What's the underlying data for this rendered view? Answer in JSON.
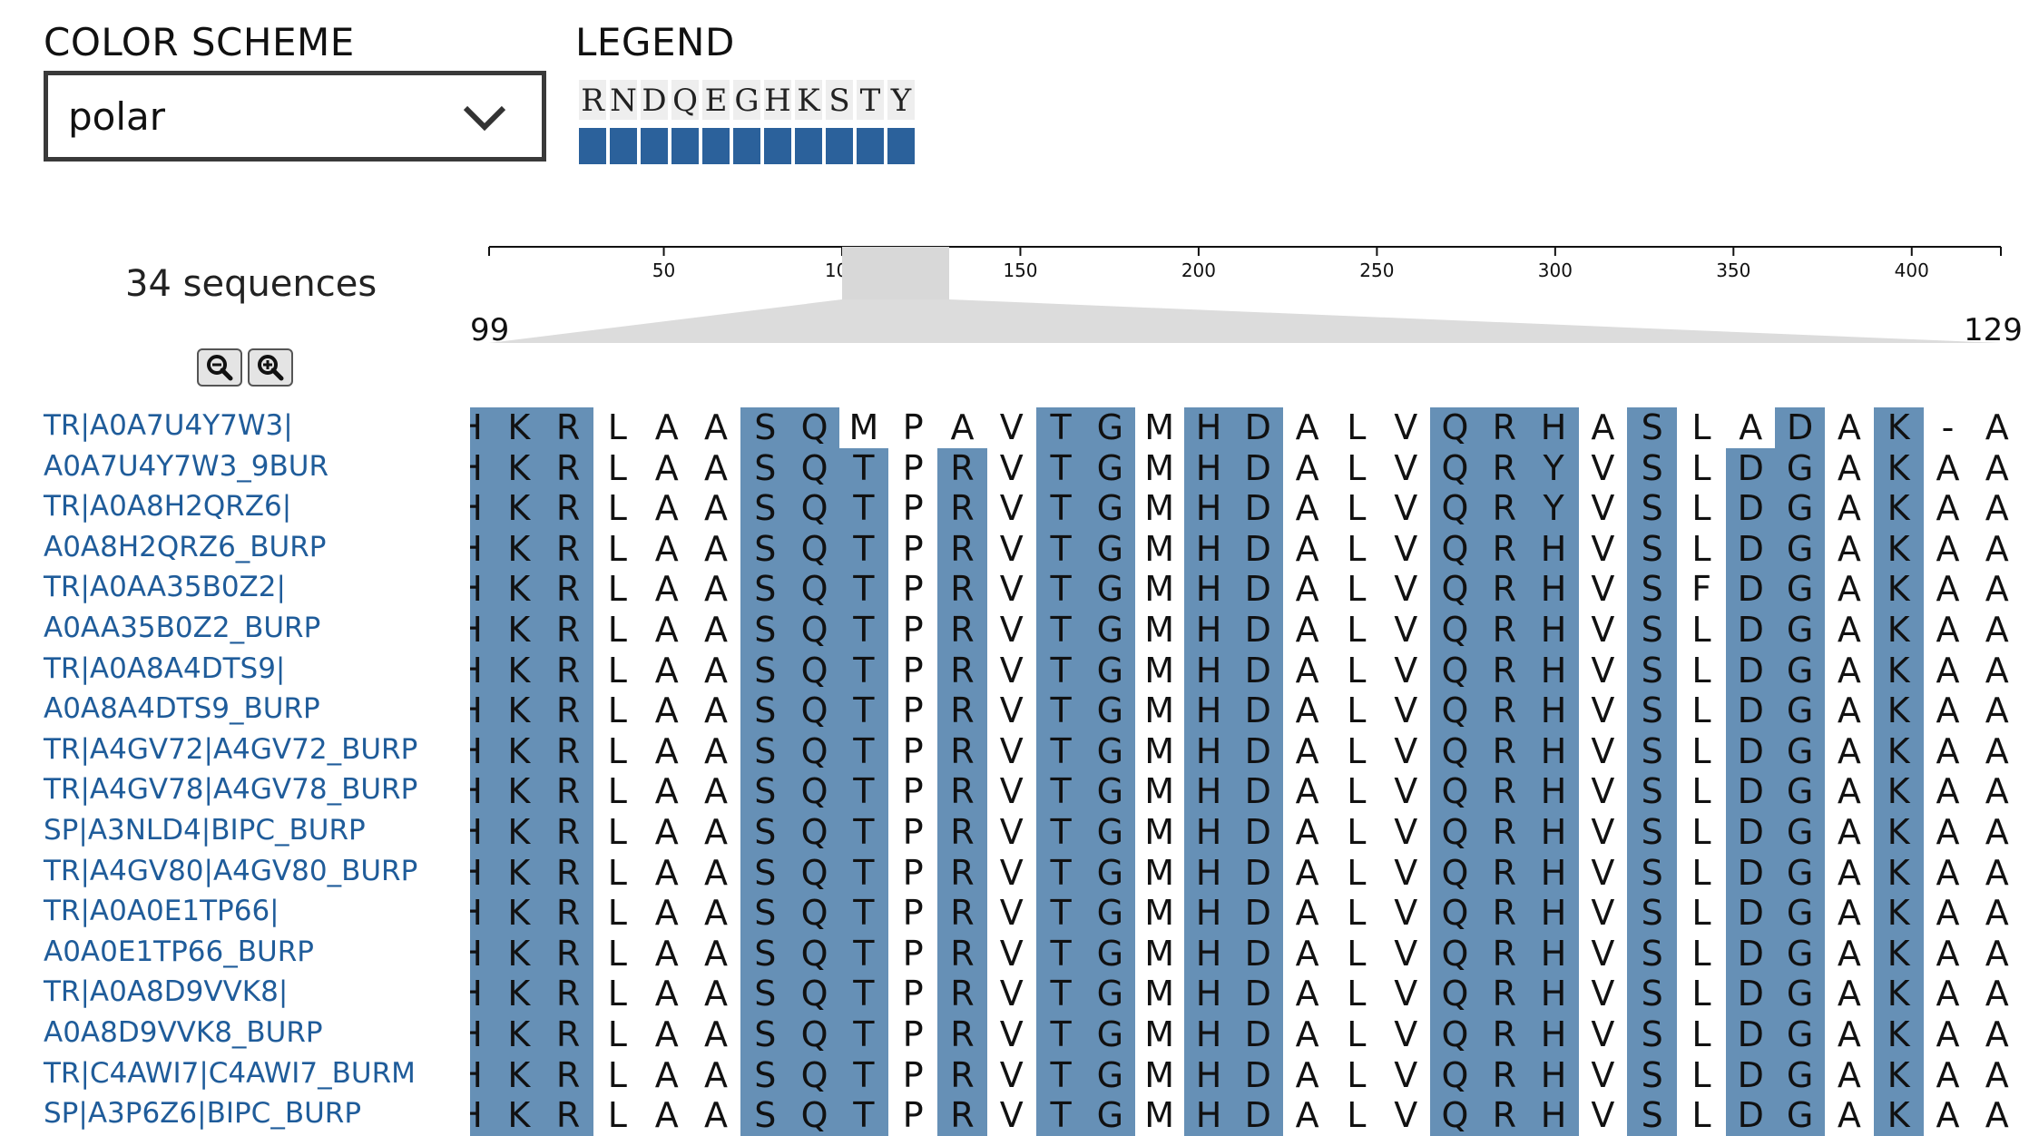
{
  "color_scheme": {
    "label": "COLOR SCHEME",
    "value": "polar"
  },
  "legend": {
    "label": "LEGEND",
    "residues": [
      "R",
      "N",
      "D",
      "Q",
      "E",
      "G",
      "H",
      "K",
      "S",
      "T",
      "Y"
    ],
    "color": "#2b619b"
  },
  "colors": {
    "polar_cell": "#6690b6",
    "link": "#1f5c9a"
  },
  "sequence_count": "34 sequences",
  "zoom": {
    "zoom_out_icon": "zoom-out-icon",
    "zoom_in_icon": "zoom-in-icon"
  },
  "ruler": {
    "ticks": [
      "50",
      "100",
      "150",
      "200",
      "250",
      "300",
      "350",
      "400"
    ],
    "range_start": "99",
    "range_end": "129"
  },
  "sequence_labels": [
    "TR|A0A7U4Y7W3|",
    "A0A7U4Y7W3_9BUR",
    "TR|A0A8H2QRZ6|",
    "A0A8H2QRZ6_BURP",
    "TR|A0AA35B0Z2|",
    "A0AA35B0Z2_BURP",
    "TR|A0A8A4DTS9|",
    "A0A8A4DTS9_BURP",
    "TR|A4GV72|A4GV72_BURP",
    "TR|A4GV78|A4GV78_BURP",
    "SP|A3NLD4|BIPC_BURP",
    "TR|A4GV80|A4GV80_BURP",
    "TR|A0A0E1TP66|",
    "A0A0E1TP66_BURP",
    "TR|A0A8D9VVK8|",
    "A0A8D9VVK8_BURP",
    "TR|C4AWI7|C4AWI7_BURM",
    "SP|A3P6Z6|BIPC_BURP"
  ],
  "alignment_rows": [
    "HKRLAASQMPAVTGMHDALVQRHASLADAK-A",
    "HKRLAASQTPRVTGMHDALVQRYVSLDGAKAA",
    "HKRLAASQTPRVTGMHDALVQRYVSLDGAKAA",
    "HKRLAASQTPRVTGMHDALVQRHVSLDGAKAA",
    "HKRLAASQTPRVTGMHDALVQRHVSFDGAKAA",
    "HKRLAASQTPRVTGMHDALVQRHVSLDGAKAA",
    "HKRLAASQTPRVTGMHDALVQRHVSLDGAKAA",
    "HKRLAASQTPRVTGMHDALVQRHVSLDGAKAA",
    "HKRLAASQTPRVTGMHDALVQRHVSLDGAKAA",
    "HKRLAASQTPRVTGMHDALVQRHVSLDGAKAA",
    "HKRLAASQTPRVTGMHDALVQRHVSLDGAKAA",
    "HKRLAASQTPRVTGMHDALVQRHVSLDGAKAA",
    "HKRLAASQTPRVTGMHDALVQRHVSLDGAKAA",
    "HKRLAASQTPRVTGMHDALVQRHVSLDGAKAA",
    "HKRLAASQTPRVTGMHDALVQRHVSLDGAKAA",
    "HKRLAASQTPRVTGMHDALVQRHVSLDGAKAA",
    "HKRLAASQTPRVTGMHDALVQRHVSLDGAKAA",
    "HKRLAASQTPRVTGMHDALVQRHVSLDGAKAA"
  ]
}
